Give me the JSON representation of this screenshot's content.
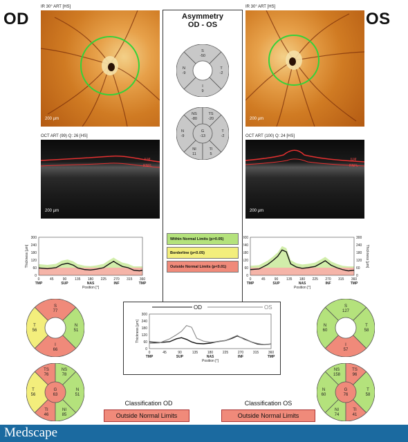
{
  "od": {
    "label": "OD",
    "ir_title": "IR 30° ART [HS]",
    "oct_title": "OCT ART (99) Q: 26 [HS]",
    "scale_ir": "200 µm",
    "scale_oct": "200 µm",
    "ilm": "ILM",
    "rnfl": "RNFL",
    "sector6": {
      "S": "77",
      "T": "56",
      "N": "51",
      "I": "66"
    },
    "sector8": {
      "TS": "76",
      "NS": "78",
      "T": "56",
      "N": "51",
      "G": "63",
      "TI": "46",
      "NI": "85"
    },
    "classification_title": "Classification OD",
    "classification_value": "Outside Normal Limits"
  },
  "os": {
    "label": "OS",
    "ir_title": "IR 30° ART [HS]",
    "oct_title": "OCT ART (100) Q: 24 [HS]",
    "scale_ir": "200 µm",
    "scale_oct": "200 µm",
    "ilm": "ILM",
    "rnfl": "RNFL",
    "sector6": {
      "S": "127",
      "T": "58",
      "N": "60",
      "I": "57"
    },
    "sector8": {
      "NS": "158",
      "TS": "96",
      "N": "60",
      "T": "58",
      "G": "76",
      "NI": "74",
      "TI": "41"
    },
    "classification_title": "Classification OS",
    "classification_value": "Outside Normal Limits"
  },
  "asymmetry": {
    "title": "Asymmetry",
    "subtitle": "OD - OS",
    "sector6": {
      "S": "-50",
      "N": "-9",
      "T": "-2",
      "I": "9"
    },
    "sector8": {
      "NS": "-80",
      "TS": "-20",
      "N": "-9",
      "G": "-13",
      "T": "-2",
      "NI": "11",
      "TI": "5"
    }
  },
  "legend": {
    "within": "Within Normal Limits (p>0.05)",
    "borderline": "Borderline (p<0.05)",
    "outside": "Outside Normal Limits (p<0.01)"
  },
  "colors": {
    "green": "#b4e27c",
    "yellow": "#f3ee7c",
    "red": "#f08a7a",
    "gray": "#c8c8c8"
  },
  "chart_data": [
    {
      "type": "line",
      "title": "",
      "xlabel": "Position [°]",
      "ylabel": "Thickness [µm]",
      "xlim": [
        0,
        360
      ],
      "ylim": [
        0,
        300
      ],
      "x_ticks": [
        "0",
        "45",
        "90",
        "135",
        "180",
        "225",
        "270",
        "315",
        "360"
      ],
      "y_ticks": [
        "0",
        "60",
        "120",
        "180",
        "240",
        "300"
      ],
      "region_labels": [
        "TMP",
        "SUP",
        "NAS",
        "INF",
        "TMP"
      ],
      "x": [
        0,
        30,
        60,
        80,
        100,
        120,
        135,
        160,
        180,
        200,
        225,
        245,
        260,
        270,
        290,
        310,
        330,
        350,
        360
      ],
      "series": [
        {
          "values": [
            58,
            52,
            60,
            85,
            95,
            80,
            58,
            45,
            42,
            48,
            60,
            90,
            110,
            95,
            70,
            60,
            40,
            35,
            40
          ]
        }
      ]
    },
    {
      "type": "line",
      "title": "",
      "xlabel": "Position [°]",
      "ylabel": "Thickness [µm]",
      "xlim": [
        0,
        360
      ],
      "ylim": [
        0,
        300
      ],
      "x_ticks": [
        "0",
        "45",
        "90",
        "135",
        "180",
        "225",
        "270",
        "315",
        "360"
      ],
      "y_ticks": [
        "0",
        "60",
        "120",
        "180",
        "240",
        "300"
      ],
      "region_labels": [
        "TMP",
        "SUP",
        "NAS",
        "INF",
        "TMP"
      ],
      "x": [
        0,
        30,
        60,
        80,
        95,
        110,
        125,
        140,
        160,
        180,
        200,
        225,
        245,
        260,
        280,
        300,
        320,
        340,
        360
      ],
      "series": [
        {
          "values": [
            45,
            50,
            85,
            120,
            150,
            200,
            185,
            90,
            65,
            55,
            60,
            70,
            95,
            115,
            80,
            60,
            45,
            35,
            40
          ]
        }
      ]
    },
    {
      "type": "line",
      "title": "",
      "xlabel": "Position [°]",
      "ylabel": "Thickness [µm]",
      "xlim": [
        0,
        360
      ],
      "ylim": [
        0,
        300
      ],
      "x_ticks": [
        "0",
        "45",
        "90",
        "135",
        "180",
        "225",
        "270",
        "315",
        "360"
      ],
      "y_ticks": [
        "0",
        "60",
        "120",
        "180",
        "240",
        "300"
      ],
      "region_labels": [
        "TMP",
        "SUP",
        "NAS",
        "INF",
        "TMP"
      ],
      "x": [
        0,
        30,
        60,
        80,
        95,
        110,
        125,
        140,
        160,
        180,
        200,
        225,
        245,
        260,
        280,
        300,
        320,
        340,
        360
      ],
      "series": [
        {
          "name": "OD",
          "values": [
            58,
            52,
            60,
            85,
            95,
            80,
            58,
            45,
            42,
            48,
            60,
            70,
            90,
            110,
            85,
            60,
            40,
            35,
            40
          ]
        },
        {
          "name": "OS",
          "values": [
            45,
            50,
            85,
            120,
            150,
            200,
            185,
            90,
            65,
            55,
            60,
            70,
            95,
            115,
            80,
            60,
            45,
            35,
            40
          ]
        }
      ]
    }
  ]
}
